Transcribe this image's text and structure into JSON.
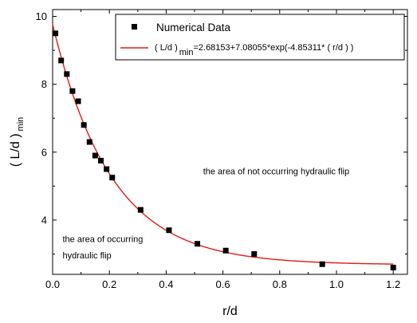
{
  "chart_data": {
    "type": "scatter",
    "xlabel": "r/d",
    "ylabel_main": "( L/d )",
    "ylabel_sub": "min",
    "xlim": [
      0.0,
      1.25
    ],
    "ylim": [
      2.4,
      10.2
    ],
    "xticks": [
      0.0,
      0.2,
      0.4,
      0.6,
      0.8,
      1.0,
      1.2
    ],
    "xtick_labels": [
      "0.0",
      "0.2",
      "0.4",
      "0.6",
      "0.8",
      "1.0",
      "1.2"
    ],
    "yticks": [
      4,
      6,
      8,
      10
    ],
    "ytick_labels": [
      "4",
      "6",
      "8",
      "10"
    ],
    "grid": false,
    "legend_position": "top-right",
    "series": [
      {
        "name": "Numerical Data",
        "kind": "scatter",
        "marker": "square",
        "color": "#000000",
        "points": [
          {
            "x": 0.01,
            "y": 9.5
          },
          {
            "x": 0.03,
            "y": 8.7
          },
          {
            "x": 0.05,
            "y": 8.3
          },
          {
            "x": 0.07,
            "y": 7.8
          },
          {
            "x": 0.09,
            "y": 7.5
          },
          {
            "x": 0.11,
            "y": 6.8
          },
          {
            "x": 0.13,
            "y": 6.3
          },
          {
            "x": 0.15,
            "y": 5.9
          },
          {
            "x": 0.17,
            "y": 5.75
          },
          {
            "x": 0.19,
            "y": 5.5
          },
          {
            "x": 0.21,
            "y": 5.25
          },
          {
            "x": 0.31,
            "y": 4.3
          },
          {
            "x": 0.41,
            "y": 3.7
          },
          {
            "x": 0.51,
            "y": 3.3
          },
          {
            "x": 0.61,
            "y": 3.1
          },
          {
            "x": 0.71,
            "y": 3.0
          },
          {
            "x": 0.95,
            "y": 2.7
          },
          {
            "x": 1.2,
            "y": 2.6
          }
        ]
      },
      {
        "kind": "fit-line",
        "color": "#e31a1a",
        "legend_prefix": "( L/d )",
        "legend_sub": "min",
        "legend_suffix": "=2.68153+7.08055*exp(-4.85311* ( r/d ) )",
        "a": 2.68153,
        "b": 7.08055,
        "c": -4.85311,
        "x_range": [
          0.0,
          1.2
        ]
      }
    ],
    "annotations": [
      {
        "text": "the area of not occurring hydraulic flip",
        "x": 0.53,
        "y": 5.35
      },
      {
        "text": "the area of occurring",
        "x": 0.035,
        "y": 3.35
      },
      {
        "text": "hydraulic flip",
        "x": 0.035,
        "y": 2.87
      }
    ]
  }
}
